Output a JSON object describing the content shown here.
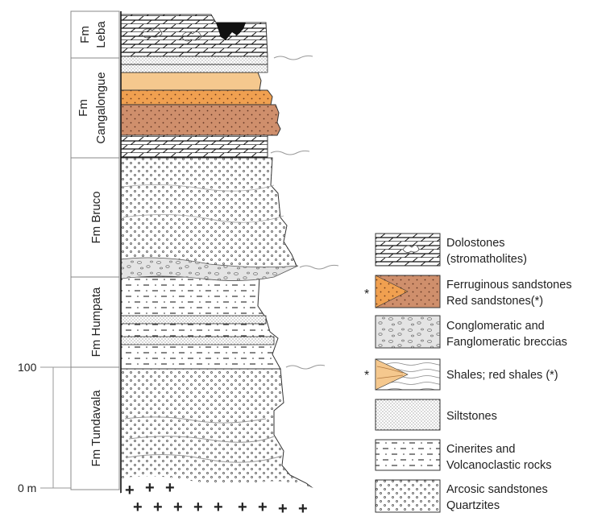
{
  "formations": [
    {
      "prefix": "Fm",
      "name": "Leba"
    },
    {
      "prefix": "Fm",
      "name": "Cangalongue"
    },
    {
      "prefix": "Fm",
      "name": "Bruco"
    },
    {
      "prefix": "Fm",
      "name": "Humpata"
    },
    {
      "prefix": "Fm",
      "name": "Tundavala"
    }
  ],
  "scale": {
    "top_label": "100",
    "bottom_label": "0 m"
  },
  "legend": [
    {
      "pattern": "dolostone",
      "lines": [
        "Dolostones",
        "(stromatholites)"
      ],
      "marker": ""
    },
    {
      "pattern": "ferruginous-sandstone",
      "lines": [
        "Ferruginous sandstones",
        "Red sandstones(*)"
      ],
      "marker": "*"
    },
    {
      "pattern": "conglomerate",
      "lines": [
        "Conglomeratic and",
        "Fanglomeratic breccias"
      ],
      "marker": ""
    },
    {
      "pattern": "shale",
      "lines": [
        "Shales; red shales (*)"
      ],
      "marker": "*"
    },
    {
      "pattern": "siltstone",
      "lines": [
        "Siltstones"
      ],
      "marker": ""
    },
    {
      "pattern": "cinerite",
      "lines": [
        "Cinerites and",
        "Volcanoclastic rocks"
      ],
      "marker": ""
    },
    {
      "pattern": "arcosic-sandstone",
      "lines": [
        "Arcosic sandstones",
        "Quartzites"
      ],
      "marker": ""
    }
  ],
  "colors": {
    "orange": "#f0a050",
    "light_orange": "#f5c88e",
    "brown": "#cf8f6c",
    "conglomerate_fill": "#e4e4e4",
    "black": "#111111"
  }
}
